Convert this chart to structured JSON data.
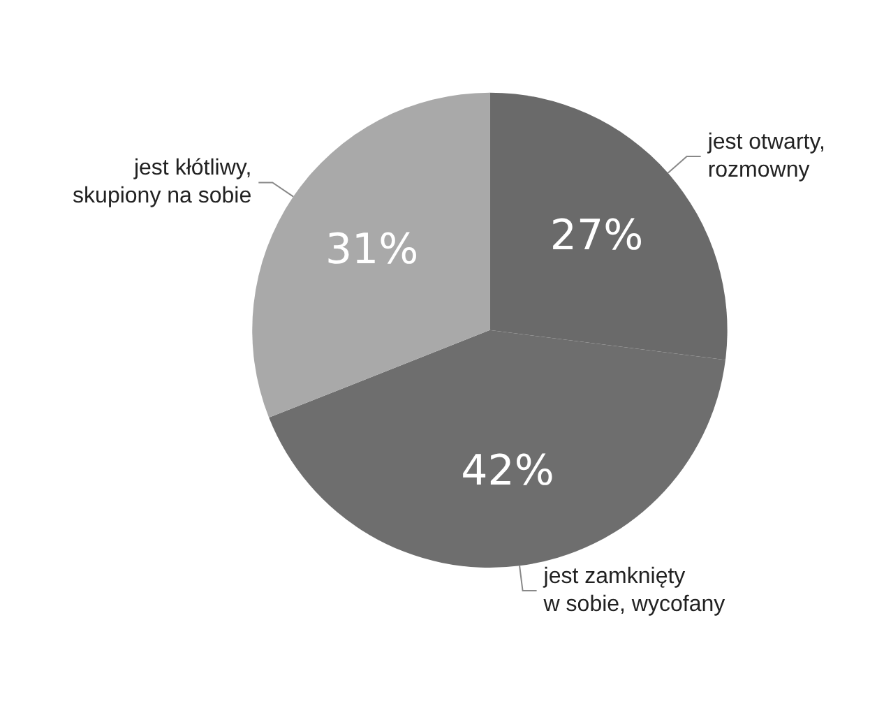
{
  "chart_data": {
    "type": "pie",
    "categories": [
      "jest otwarty,\nrozmowny",
      "jest zamknięty\nw sobie, wycofany",
      "jest kłótliwy,\nskupiony na sobie"
    ],
    "values": [
      27,
      42,
      31
    ],
    "colors": [
      "#6a6a6a",
      "#6e6e6e",
      "#a9a9a9"
    ],
    "value_labels": [
      "27%",
      "42%",
      "31%"
    ]
  }
}
